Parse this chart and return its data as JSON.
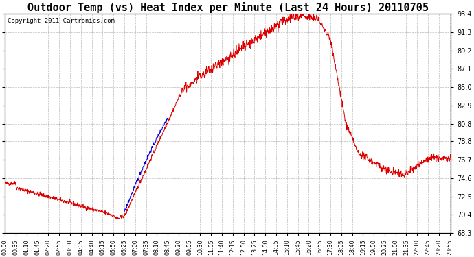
{
  "title": "Outdoor Temp (vs) Heat Index per Minute (Last 24 Hours) 20110705",
  "copyright": "Copyright 2011 Cartronics.com",
  "y_ticks": [
    68.3,
    70.4,
    72.5,
    74.6,
    76.7,
    78.8,
    80.8,
    82.9,
    85.0,
    87.1,
    89.2,
    91.3,
    93.4
  ],
  "y_min": 68.3,
  "y_max": 93.4,
  "bg_color": "#ffffff",
  "grid_color": "#bbbbbb",
  "line_color_red": "#dd0000",
  "line_color_blue": "#0000dd",
  "title_fontsize": 11,
  "copyright_fontsize": 6.5,
  "tick_fontsize": 7,
  "x_label_fontsize": 5.8,
  "x_tick_step_min": 35,
  "x_start_min": 0,
  "x_end_min": 1440
}
